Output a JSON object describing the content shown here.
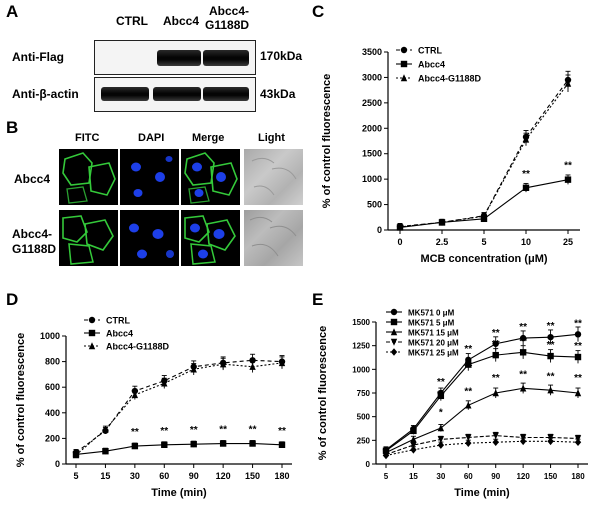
{
  "panel_a": {
    "label": "A",
    "lanes": [
      "CTRL",
      "Abcc4",
      "Abcc4-",
      "G1188D"
    ],
    "rows": [
      {
        "name": "Anti-Flag",
        "size": "170kDa"
      },
      {
        "name": "Anti-β-actin",
        "size": "43kDa"
      }
    ]
  },
  "panel_b": {
    "label": "B",
    "columns": [
      "FITC",
      "DAPI",
      "Merge",
      "Light"
    ],
    "rows": [
      "Abcc4",
      "Abcc4-",
      "G1188D"
    ]
  },
  "chart_data": [
    {
      "panel": "C",
      "type": "line",
      "xlabel": "MCB concentration (μM)",
      "ylabel": "% of control fluorescence",
      "categories": [
        "0",
        "2.5",
        "5",
        "10",
        "25"
      ],
      "ylim": [
        0,
        3500
      ],
      "yticks": [
        0,
        500,
        1000,
        1500,
        2000,
        2500,
        3000,
        3500
      ],
      "legend": "top-left",
      "series": [
        {
          "name": "CTRL",
          "marker": "circle",
          "dash": "4,3",
          "values": [
            70,
            150,
            280,
            1830,
            2950
          ]
        },
        {
          "name": "Abcc4",
          "marker": "square",
          "dash": "",
          "values": [
            50,
            150,
            220,
            830,
            990
          ]
        },
        {
          "name": "Abcc4-G1188D",
          "marker": "triangle",
          "dash": "2,2",
          "values": [
            60,
            150,
            270,
            1780,
            2880
          ]
        }
      ],
      "annotations": [
        {
          "x": "10",
          "text": "**"
        },
        {
          "x": "25",
          "text": "**"
        }
      ]
    },
    {
      "panel": "D",
      "type": "line",
      "xlabel": "Time (min)",
      "ylabel": "% of control fluorescence",
      "categories": [
        "5",
        "15",
        "30",
        "60",
        "90",
        "120",
        "150",
        "180"
      ],
      "ylim": [
        0,
        1000
      ],
      "yticks": [
        0,
        200,
        400,
        600,
        800,
        1000
      ],
      "legend": "top-left",
      "series": [
        {
          "name": "CTRL",
          "marker": "circle",
          "dash": "4,3",
          "values": [
            90,
            260,
            570,
            650,
            760,
            790,
            810,
            800
          ]
        },
        {
          "name": "Abcc4",
          "marker": "square",
          "dash": "",
          "values": [
            75,
            100,
            140,
            150,
            155,
            160,
            160,
            150
          ]
        },
        {
          "name": "Abcc4-G1188D",
          "marker": "triangle",
          "dash": "2,2",
          "values": [
            70,
            270,
            540,
            630,
            740,
            780,
            760,
            790
          ]
        }
      ],
      "annotations": [
        {
          "x": "30",
          "text": "**"
        },
        {
          "x": "60",
          "text": "**"
        },
        {
          "x": "90",
          "text": "**"
        },
        {
          "x": "120",
          "text": "**"
        },
        {
          "x": "150",
          "text": "**"
        },
        {
          "x": "180",
          "text": "**"
        }
      ]
    },
    {
      "panel": "E",
      "type": "line",
      "xlabel": "Time (min)",
      "ylabel": "% of control fluorescence",
      "categories": [
        "5",
        "15",
        "30",
        "60",
        "90",
        "120",
        "150",
        "180"
      ],
      "ylim": [
        0,
        1500
      ],
      "yticks": [
        0,
        250,
        500,
        750,
        1000,
        1250,
        1500
      ],
      "legend": "top-left",
      "series": [
        {
          "name": "MK571 0 μM",
          "marker": "circle",
          "dash": "",
          "values": [
            150,
            370,
            750,
            1100,
            1270,
            1330,
            1340,
            1370
          ]
        },
        {
          "name": "MK571 5 μM",
          "marker": "square",
          "dash": "",
          "values": [
            140,
            350,
            720,
            1050,
            1150,
            1180,
            1140,
            1130
          ]
        },
        {
          "name": "MK571 15 μM",
          "marker": "triangle",
          "dash": "",
          "values": [
            120,
            260,
            380,
            620,
            750,
            800,
            780,
            750
          ]
        },
        {
          "name": "MK571 20 μM",
          "marker": "triangle-down",
          "dash": "4,2",
          "values": [
            100,
            200,
            260,
            280,
            300,
            280,
            280,
            270
          ]
        },
        {
          "name": "MK571 25 μM",
          "marker": "diamond",
          "dash": "2,2",
          "values": [
            90,
            150,
            200,
            220,
            230,
            240,
            240,
            230
          ]
        }
      ],
      "annotations": [
        {
          "x": "30",
          "text": "**",
          "level": 750
        },
        {
          "x": "60",
          "text": "**",
          "level": 1100
        },
        {
          "x": "90",
          "text": "**",
          "level": 1270
        },
        {
          "x": "120",
          "text": "**",
          "level": 1330
        },
        {
          "x": "150",
          "text": "**",
          "level": 1340
        },
        {
          "x": "180",
          "text": "**",
          "level": 1370
        },
        {
          "x": "30",
          "text": "**",
          "level": 620
        },
        {
          "x": "60",
          "text": "**",
          "level": 900
        },
        {
          "x": "90",
          "text": "**",
          "level": 1150
        },
        {
          "x": "120",
          "text": "**",
          "level": 1180
        },
        {
          "x": "150",
          "text": "**",
          "level": 1140
        },
        {
          "x": "180",
          "text": "**",
          "level": 1130
        },
        {
          "x": "30",
          "text": "*",
          "level": 430
        },
        {
          "x": "60",
          "text": "**",
          "level": 650
        },
        {
          "x": "90",
          "text": "**",
          "level": 790
        },
        {
          "x": "120",
          "text": "**",
          "level": 830
        },
        {
          "x": "150",
          "text": "**",
          "level": 810
        },
        {
          "x": "180",
          "text": "**",
          "level": 790
        }
      ]
    }
  ]
}
